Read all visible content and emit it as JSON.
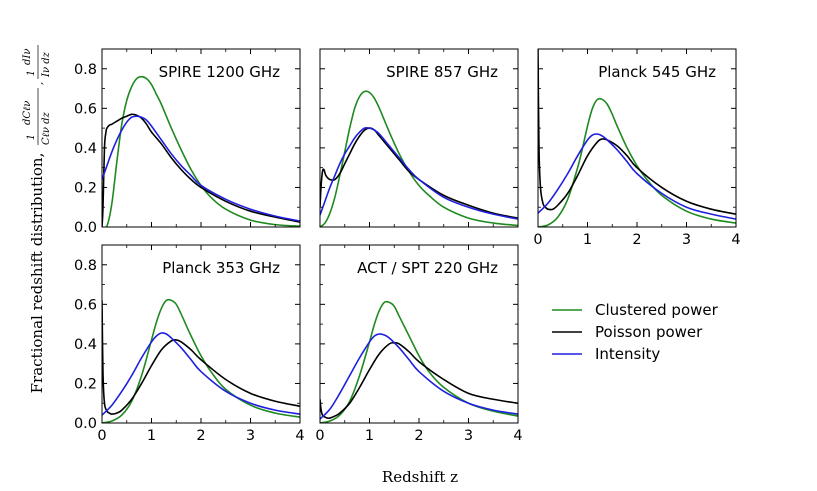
{
  "figure": {
    "xlabel": "Redshift z",
    "ylabel_text": "Fractional redshift distribution,",
    "ylabel_math": {
      "frac1_num": "dCℓν",
      "frac1_den": "Cℓν dz",
      "frac1_pre": "1",
      "separator": ",",
      "frac2_pre": "1",
      "frac2_num": "dIν",
      "frac2_den": "Iν dz"
    }
  },
  "colors": {
    "clustered": "#1f8a1f",
    "poisson": "#000000",
    "intensity": "#1f1fe0"
  },
  "legend": {
    "items": [
      {
        "key": "clustered",
        "label": "Clustered power"
      },
      {
        "key": "poisson",
        "label": "Poisson power"
      },
      {
        "key": "intensity",
        "label": "Intensity"
      }
    ]
  },
  "chart_data": [
    {
      "type": "line",
      "title": "SPIRE 1200 GHz",
      "xlim": [
        0,
        4
      ],
      "ylim": [
        0,
        0.9
      ],
      "xticks": [
        "0",
        "1",
        "2",
        "3",
        "4"
      ],
      "yticks": [
        "0.0",
        "0.2",
        "0.4",
        "0.6",
        "0.8"
      ],
      "show_xticklabels": false,
      "show_yticklabels": true,
      "series": [
        {
          "key": "clustered",
          "name": "Clustered power",
          "x": [
            0,
            0.1,
            0.2,
            0.3,
            0.4,
            0.5,
            0.6,
            0.7,
            0.8,
            0.9,
            1.0,
            1.1,
            1.2,
            1.4,
            1.6,
            1.8,
            2.0,
            2.2,
            2.5,
            3.0,
            3.5,
            4.0
          ],
          "y": [
            0,
            0.005,
            0.12,
            0.33,
            0.52,
            0.64,
            0.71,
            0.75,
            0.76,
            0.75,
            0.72,
            0.67,
            0.62,
            0.5,
            0.39,
            0.29,
            0.21,
            0.15,
            0.09,
            0.035,
            0.012,
            0.004
          ]
        },
        {
          "key": "poisson",
          "name": "Poisson power",
          "x": [
            0,
            0.02,
            0.05,
            0.08,
            0.1,
            0.15,
            0.2,
            0.3,
            0.4,
            0.5,
            0.6,
            0.7,
            0.8,
            0.9,
            1.0,
            1.2,
            1.4,
            1.6,
            1.8,
            2.0,
            2.5,
            3.0,
            3.5,
            4.0
          ],
          "y": [
            0,
            0.1,
            0.4,
            0.48,
            0.5,
            0.515,
            0.52,
            0.535,
            0.55,
            0.56,
            0.57,
            0.565,
            0.55,
            0.52,
            0.48,
            0.42,
            0.35,
            0.29,
            0.24,
            0.2,
            0.13,
            0.08,
            0.05,
            0.025
          ]
        },
        {
          "key": "intensity",
          "name": "Intensity",
          "x": [
            0,
            0.1,
            0.2,
            0.3,
            0.4,
            0.5,
            0.6,
            0.7,
            0.8,
            0.9,
            1.0,
            1.2,
            1.4,
            1.6,
            1.8,
            2.0,
            2.5,
            3.0,
            3.5,
            4.0
          ],
          "y": [
            0.24,
            0.31,
            0.38,
            0.44,
            0.49,
            0.53,
            0.555,
            0.56,
            0.555,
            0.54,
            0.51,
            0.44,
            0.37,
            0.31,
            0.26,
            0.21,
            0.14,
            0.09,
            0.055,
            0.03
          ]
        }
      ]
    },
    {
      "type": "line",
      "title": "SPIRE 857 GHz",
      "xlim": [
        0,
        4
      ],
      "ylim": [
        0,
        0.9
      ],
      "xticks": [
        "0",
        "1",
        "2",
        "3",
        "4"
      ],
      "yticks": [
        "0.0",
        "0.2",
        "0.4",
        "0.6",
        "0.8"
      ],
      "show_xticklabels": false,
      "show_yticklabels": false,
      "series": [
        {
          "key": "clustered",
          "name": "Clustered power",
          "x": [
            0,
            0.1,
            0.2,
            0.3,
            0.4,
            0.5,
            0.6,
            0.7,
            0.8,
            0.9,
            1.0,
            1.1,
            1.2,
            1.3,
            1.4,
            1.6,
            1.8,
            2.0,
            2.2,
            2.5,
            3.0,
            3.5,
            4.0
          ],
          "y": [
            0,
            0.02,
            0.07,
            0.15,
            0.26,
            0.38,
            0.5,
            0.6,
            0.66,
            0.685,
            0.68,
            0.65,
            0.6,
            0.54,
            0.48,
            0.37,
            0.28,
            0.21,
            0.16,
            0.1,
            0.045,
            0.02,
            0.008
          ]
        },
        {
          "key": "poisson",
          "name": "Poisson power",
          "x": [
            0,
            0.02,
            0.05,
            0.08,
            0.12,
            0.2,
            0.3,
            0.4,
            0.5,
            0.6,
            0.7,
            0.8,
            0.9,
            1.0,
            1.1,
            1.2,
            1.4,
            1.6,
            1.8,
            2.0,
            2.5,
            3.0,
            3.5,
            4.0
          ],
          "y": [
            0.1,
            0.2,
            0.28,
            0.29,
            0.26,
            0.24,
            0.24,
            0.27,
            0.32,
            0.37,
            0.42,
            0.46,
            0.49,
            0.5,
            0.49,
            0.46,
            0.4,
            0.34,
            0.28,
            0.24,
            0.16,
            0.11,
            0.07,
            0.045
          ]
        },
        {
          "key": "intensity",
          "name": "Intensity",
          "x": [
            0,
            0.1,
            0.2,
            0.3,
            0.4,
            0.5,
            0.6,
            0.7,
            0.8,
            0.9,
            1.0,
            1.1,
            1.2,
            1.4,
            1.6,
            1.8,
            2.0,
            2.5,
            3.0,
            3.5,
            4.0
          ],
          "y": [
            0.06,
            0.13,
            0.2,
            0.26,
            0.32,
            0.37,
            0.41,
            0.45,
            0.48,
            0.5,
            0.5,
            0.49,
            0.47,
            0.41,
            0.35,
            0.29,
            0.24,
            0.15,
            0.1,
            0.065,
            0.04
          ]
        }
      ]
    },
    {
      "type": "line",
      "title": "Planck 545 GHz",
      "xlim": [
        0,
        4
      ],
      "ylim": [
        0,
        0.9
      ],
      "xticks": [
        "0",
        "1",
        "2",
        "3",
        "4"
      ],
      "yticks": [
        "0.0",
        "0.2",
        "0.4",
        "0.6",
        "0.8"
      ],
      "show_xticklabels": true,
      "show_yticklabels": false,
      "series": [
        {
          "key": "clustered",
          "name": "Clustered power",
          "x": [
            0,
            0.2,
            0.4,
            0.6,
            0.8,
            0.9,
            1.0,
            1.1,
            1.2,
            1.3,
            1.4,
            1.5,
            1.6,
            1.8,
            2.0,
            2.2,
            2.5,
            3.0,
            3.5,
            4.0
          ],
          "y": [
            0,
            0.01,
            0.05,
            0.14,
            0.3,
            0.4,
            0.51,
            0.6,
            0.645,
            0.645,
            0.62,
            0.57,
            0.51,
            0.4,
            0.31,
            0.24,
            0.16,
            0.08,
            0.04,
            0.02
          ]
        },
        {
          "key": "poisson",
          "name": "Poisson power",
          "x": [
            0,
            0.02,
            0.05,
            0.1,
            0.15,
            0.2,
            0.3,
            0.4,
            0.6,
            0.8,
            1.0,
            1.2,
            1.3,
            1.4,
            1.6,
            1.8,
            2.0,
            2.5,
            3.0,
            3.5,
            4.0
          ],
          "y": [
            0.9,
            0.4,
            0.2,
            0.12,
            0.1,
            0.09,
            0.09,
            0.11,
            0.17,
            0.26,
            0.36,
            0.43,
            0.445,
            0.44,
            0.41,
            0.36,
            0.3,
            0.2,
            0.13,
            0.09,
            0.065
          ]
        },
        {
          "key": "intensity",
          "name": "Intensity",
          "x": [
            0,
            0.2,
            0.4,
            0.6,
            0.8,
            1.0,
            1.1,
            1.2,
            1.3,
            1.4,
            1.6,
            1.8,
            2.0,
            2.5,
            3.0,
            3.5,
            4.0
          ],
          "y": [
            0.07,
            0.12,
            0.19,
            0.27,
            0.36,
            0.44,
            0.465,
            0.47,
            0.46,
            0.44,
            0.39,
            0.33,
            0.27,
            0.17,
            0.1,
            0.065,
            0.04
          ]
        }
      ]
    },
    {
      "type": "line",
      "title": "Planck 353 GHz",
      "xlim": [
        0,
        4
      ],
      "ylim": [
        0,
        0.9
      ],
      "xticks": [
        "0",
        "1",
        "2",
        "3",
        "4"
      ],
      "yticks": [
        "0.0",
        "0.2",
        "0.4",
        "0.6",
        "0.8"
      ],
      "show_xticklabels": true,
      "show_yticklabels": true,
      "series": [
        {
          "key": "clustered",
          "name": "Clustered power",
          "x": [
            0,
            0.2,
            0.4,
            0.6,
            0.8,
            1.0,
            1.1,
            1.2,
            1.3,
            1.4,
            1.5,
            1.6,
            1.8,
            2.0,
            2.2,
            2.5,
            3.0,
            3.5,
            4.0
          ],
          "y": [
            0,
            0.01,
            0.04,
            0.11,
            0.24,
            0.42,
            0.51,
            0.58,
            0.62,
            0.62,
            0.6,
            0.55,
            0.44,
            0.34,
            0.26,
            0.17,
            0.09,
            0.05,
            0.03
          ]
        },
        {
          "key": "poisson",
          "name": "Poisson power",
          "x": [
            0,
            0.02,
            0.05,
            0.1,
            0.15,
            0.2,
            0.3,
            0.4,
            0.6,
            0.8,
            1.0,
            1.2,
            1.4,
            1.5,
            1.6,
            1.8,
            2.0,
            2.5,
            3.0,
            3.5,
            4.0
          ],
          "y": [
            0.62,
            0.25,
            0.1,
            0.06,
            0.05,
            0.045,
            0.05,
            0.065,
            0.12,
            0.2,
            0.29,
            0.37,
            0.415,
            0.42,
            0.41,
            0.37,
            0.32,
            0.22,
            0.15,
            0.11,
            0.085
          ]
        },
        {
          "key": "intensity",
          "name": "Intensity",
          "x": [
            0,
            0.2,
            0.4,
            0.6,
            0.8,
            1.0,
            1.1,
            1.2,
            1.3,
            1.4,
            1.6,
            1.8,
            2.0,
            2.5,
            3.0,
            3.5,
            4.0
          ],
          "y": [
            0.04,
            0.09,
            0.16,
            0.24,
            0.33,
            0.41,
            0.44,
            0.455,
            0.45,
            0.43,
            0.38,
            0.32,
            0.26,
            0.16,
            0.1,
            0.065,
            0.045
          ]
        }
      ]
    },
    {
      "type": "line",
      "title": "ACT / SPT 220 GHz",
      "xlim": [
        0,
        4
      ],
      "ylim": [
        0,
        0.9
      ],
      "xticks": [
        "0",
        "1",
        "2",
        "3",
        "4"
      ],
      "yticks": [
        "0.0",
        "0.2",
        "0.4",
        "0.6",
        "0.8"
      ],
      "show_xticklabels": true,
      "show_yticklabels": false,
      "series": [
        {
          "key": "clustered",
          "name": "Clustered power",
          "x": [
            0,
            0.2,
            0.4,
            0.6,
            0.8,
            1.0,
            1.1,
            1.2,
            1.3,
            1.4,
            1.5,
            1.6,
            1.8,
            2.0,
            2.2,
            2.5,
            3.0,
            3.5,
            4.0
          ],
          "y": [
            0,
            0.01,
            0.04,
            0.11,
            0.24,
            0.41,
            0.5,
            0.57,
            0.61,
            0.61,
            0.59,
            0.54,
            0.44,
            0.34,
            0.26,
            0.18,
            0.1,
            0.06,
            0.035
          ]
        },
        {
          "key": "poisson",
          "name": "Poisson power",
          "x": [
            0,
            0.02,
            0.05,
            0.1,
            0.15,
            0.2,
            0.3,
            0.4,
            0.6,
            0.8,
            1.0,
            1.2,
            1.4,
            1.5,
            1.6,
            1.8,
            2.0,
            2.5,
            3.0,
            3.5,
            4.0
          ],
          "y": [
            0.12,
            0.07,
            0.04,
            0.03,
            0.025,
            0.025,
            0.035,
            0.05,
            0.1,
            0.18,
            0.27,
            0.35,
            0.4,
            0.405,
            0.4,
            0.36,
            0.31,
            0.22,
            0.15,
            0.12,
            0.1
          ]
        },
        {
          "key": "intensity",
          "name": "Intensity",
          "x": [
            0,
            0.2,
            0.4,
            0.6,
            0.8,
            1.0,
            1.1,
            1.2,
            1.3,
            1.4,
            1.6,
            1.8,
            2.0,
            2.5,
            3.0,
            3.5,
            4.0
          ],
          "y": [
            0.02,
            0.07,
            0.15,
            0.24,
            0.33,
            0.41,
            0.44,
            0.45,
            0.445,
            0.43,
            0.38,
            0.32,
            0.26,
            0.16,
            0.1,
            0.065,
            0.045
          ]
        }
      ]
    }
  ]
}
